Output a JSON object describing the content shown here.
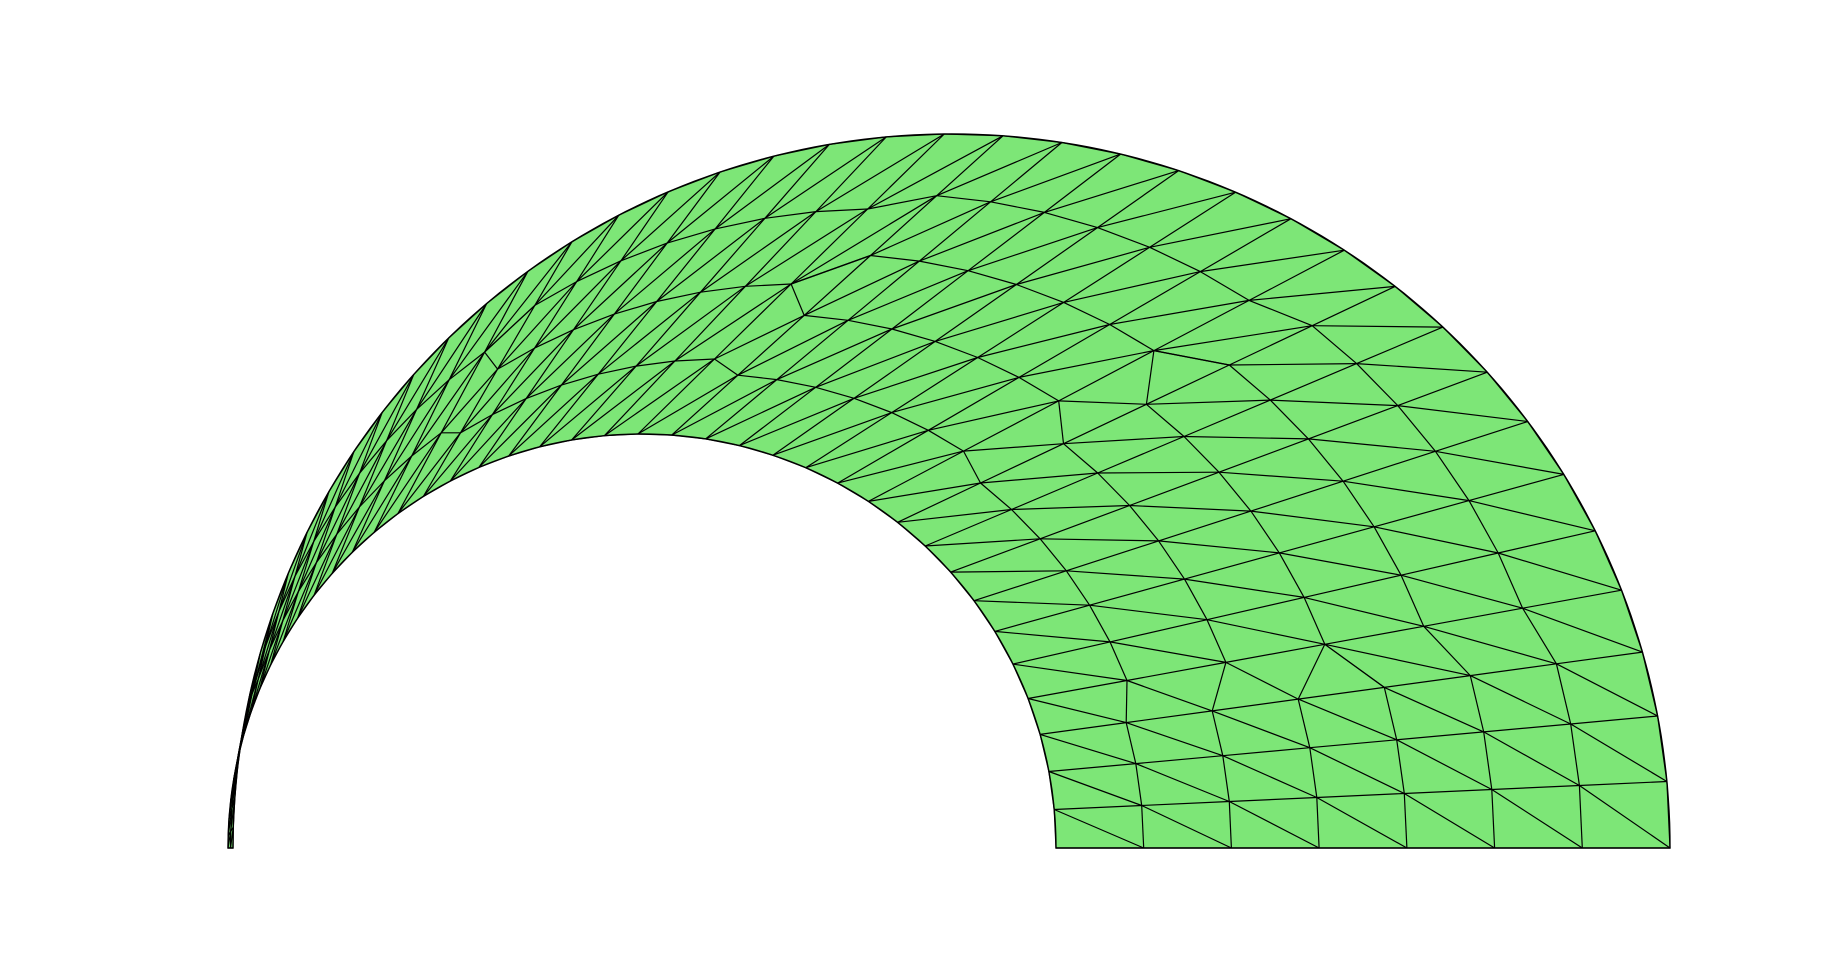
{
  "figure": {
    "kind": "triangular-mesh",
    "shape": "half-annulus",
    "fill_color": "#7de677",
    "edge_color": "#000000",
    "background_color": "#ffffff"
  }
}
